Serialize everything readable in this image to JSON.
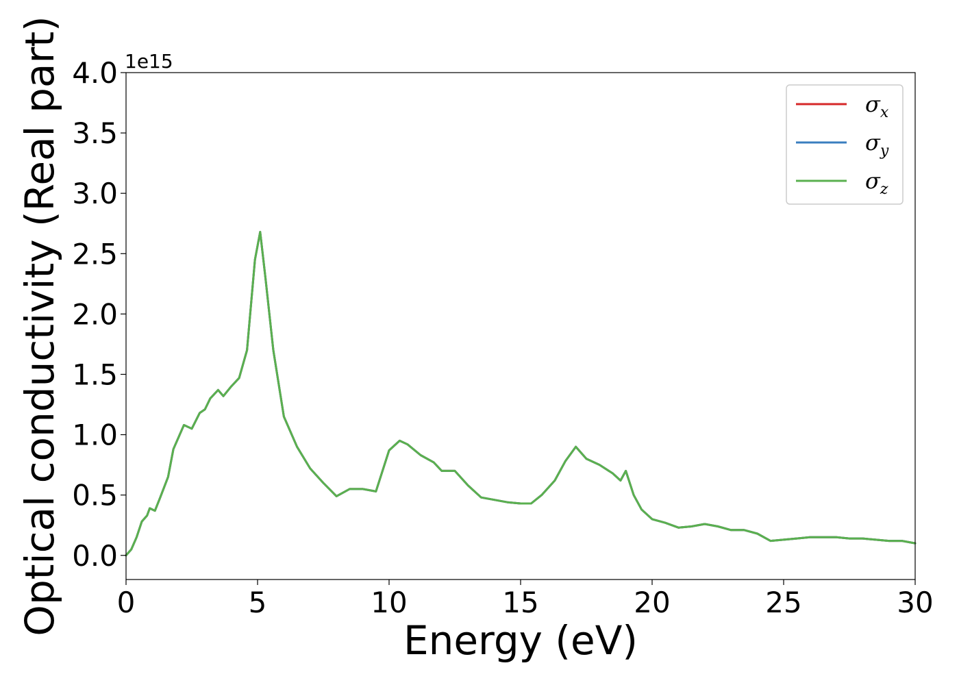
{
  "chart_data": {
    "type": "line",
    "xlabel": "Energy (eV)",
    "ylabel": "Optical conductivity (Real part)",
    "y_offset_label": "1e15",
    "xlim": [
      0,
      30
    ],
    "ylim": [
      -0.2,
      4.0
    ],
    "x_ticks": [
      "0",
      "5",
      "10",
      "15",
      "20",
      "25",
      "30"
    ],
    "x_tick_values": [
      0,
      5,
      10,
      15,
      20,
      25,
      30
    ],
    "y_ticks": [
      "0.0",
      "0.5",
      "1.0",
      "1.5",
      "2.0",
      "2.5",
      "3.0",
      "3.5",
      "4.0"
    ],
    "y_tick_values": [
      0.0,
      0.5,
      1.0,
      1.5,
      2.0,
      2.5,
      3.0,
      3.5,
      4.0
    ],
    "grid": false,
    "legend_position": "top-right",
    "series": [
      {
        "name": "σ",
        "subscript": "x",
        "color": "#d62728"
      },
      {
        "name": "σ",
        "subscript": "y",
        "color": "#3a7ebf"
      },
      {
        "name": "σ",
        "subscript": "z",
        "color": "#5ab04f"
      }
    ],
    "x": [
      0,
      0.2,
      0.4,
      0.6,
      0.8,
      0.9,
      1.1,
      1.3,
      1.6,
      1.8,
      2.0,
      2.2,
      2.5,
      2.8,
      3.0,
      3.2,
      3.5,
      3.7,
      4.0,
      4.3,
      4.6,
      4.9,
      5.1,
      5.3,
      5.6,
      6.0,
      6.5,
      7.0,
      7.5,
      8.0,
      8.5,
      9.0,
      9.5,
      10.0,
      10.4,
      10.7,
      11.2,
      11.7,
      12.0,
      12.5,
      13.0,
      13.5,
      14.0,
      14.5,
      15.0,
      15.4,
      15.8,
      16.3,
      16.7,
      17.1,
      17.5,
      18.0,
      18.5,
      18.8,
      19.0,
      19.3,
      19.6,
      20.0,
      20.5,
      21.0,
      21.5,
      22.0,
      22.5,
      23.0,
      23.5,
      24.0,
      24.5,
      25.0,
      25.5,
      26.0,
      26.5,
      27.0,
      27.5,
      28.0,
      28.5,
      29.0,
      29.5,
      30.0
    ],
    "y": [
      0.0,
      0.05,
      0.15,
      0.28,
      0.33,
      0.39,
      0.37,
      0.48,
      0.65,
      0.88,
      0.98,
      1.08,
      1.05,
      1.18,
      1.21,
      1.3,
      1.37,
      1.32,
      1.4,
      1.47,
      1.7,
      2.45,
      2.68,
      2.3,
      1.7,
      1.15,
      0.9,
      0.72,
      0.6,
      0.49,
      0.55,
      0.55,
      0.53,
      0.87,
      0.95,
      0.92,
      0.83,
      0.77,
      0.7,
      0.7,
      0.58,
      0.48,
      0.46,
      0.44,
      0.43,
      0.43,
      0.5,
      0.62,
      0.78,
      0.9,
      0.8,
      0.75,
      0.68,
      0.62,
      0.7,
      0.5,
      0.38,
      0.3,
      0.27,
      0.23,
      0.24,
      0.26,
      0.24,
      0.21,
      0.21,
      0.18,
      0.12,
      0.13,
      0.14,
      0.15,
      0.15,
      0.15,
      0.14,
      0.14,
      0.13,
      0.12,
      0.12,
      0.1
    ]
  }
}
